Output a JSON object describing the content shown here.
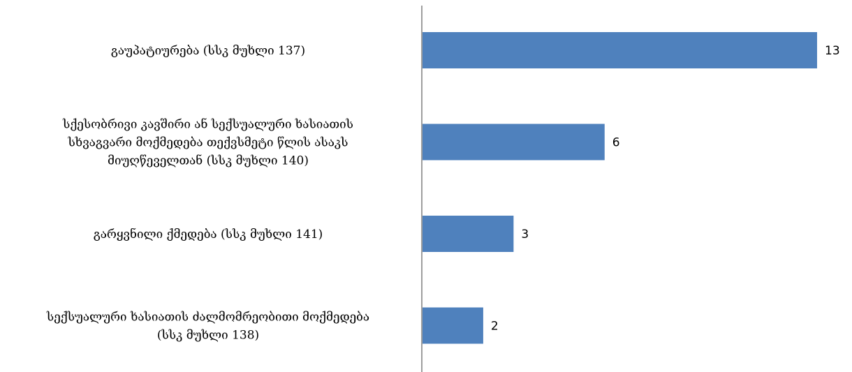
{
  "chart_data": {
    "type": "bar",
    "orientation": "horizontal",
    "categories": [
      [
        "გაუპატიურება (სსკ მუხლი 137)"
      ],
      [
        "სქესობრივი კავშირი ან სექსუალური ხასიათის",
        "სხვაგვარი მოქმედება თექვსმეტი წლის ასაკს",
        "მიუღწეველთან (სსკ მუხლი 140)"
      ],
      [
        "გარყვნილი ქმედება (სსკ მუხლი 141)"
      ],
      [
        "სექსუალური ხასიათის ძალმომრეობითი მოქმედება",
        "(სსკ მუხლი 138)"
      ]
    ],
    "values": [
      13,
      6,
      3,
      2
    ],
    "xlim": [
      0,
      13
    ],
    "grid": false,
    "legend": "none",
    "bar_color": "#4F81BD",
    "axis_color": "#7f7f7f"
  }
}
